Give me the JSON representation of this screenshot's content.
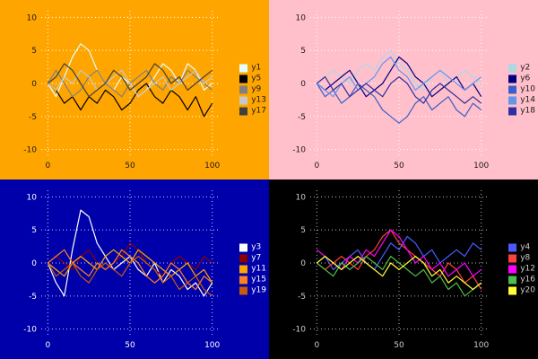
{
  "page": {
    "title": "",
    "layout": "2x2-line-chart-grid"
  },
  "chart_data": [
    {
      "type": "line",
      "panel": "top-left",
      "background": "#FFA500",
      "text_color": "#1a1a1a",
      "grid_color": "#FFFFFF",
      "xlim": [
        -4,
        104
      ],
      "ylim": [
        -11,
        11
      ],
      "xticks": [
        0,
        50,
        100
      ],
      "yticks": [
        -10,
        -5,
        0,
        5,
        10
      ],
      "legend_position": "right",
      "grid": true,
      "x": [
        0,
        5,
        10,
        15,
        20,
        25,
        30,
        35,
        40,
        45,
        50,
        55,
        60,
        65,
        70,
        75,
        80,
        85,
        90,
        95,
        100
      ],
      "series": [
        {
          "name": "y1",
          "color": "#E0FFFF",
          "values": [
            0,
            -2,
            1,
            4,
            6,
            5,
            2,
            0,
            -1,
            1,
            0,
            -2,
            -1,
            1,
            3,
            2,
            0,
            3,
            2,
            -1,
            0
          ]
        },
        {
          "name": "y5",
          "color": "#000000",
          "values": [
            0,
            -1,
            -3,
            -2,
            -4,
            -2,
            -3,
            -1,
            -2,
            -4,
            -3,
            -1,
            0,
            -2,
            -3,
            -1,
            -2,
            -4,
            -2,
            -5,
            -3
          ]
        },
        {
          "name": "y9",
          "color": "#808080",
          "values": [
            0,
            2,
            0,
            -2,
            -1,
            1,
            2,
            0,
            -1,
            -2,
            0,
            1,
            2,
            0,
            -1,
            1,
            0,
            2,
            1,
            0,
            -1
          ]
        },
        {
          "name": "y13",
          "color": "#C8C8C8",
          "values": [
            0,
            -1,
            1,
            0,
            2,
            1,
            -1,
            0,
            1,
            2,
            0,
            -2,
            -1,
            0,
            1,
            -1,
            0,
            1,
            2,
            0,
            1
          ]
        },
        {
          "name": "y17",
          "color": "#404040",
          "values": [
            0,
            1,
            3,
            2,
            0,
            -2,
            -1,
            0,
            2,
            1,
            -1,
            0,
            1,
            3,
            2,
            0,
            1,
            -1,
            0,
            1,
            2
          ]
        }
      ]
    },
    {
      "type": "line",
      "panel": "top-right",
      "background": "#FFC0CB",
      "text_color": "#1a1a1a",
      "grid_color": "#FFFFFF",
      "xlim": [
        -4,
        104
      ],
      "ylim": [
        -11,
        11
      ],
      "xticks": [
        0,
        50,
        100
      ],
      "yticks": [
        -10,
        -5,
        0,
        5,
        10
      ],
      "legend_position": "right",
      "grid": true,
      "x": [
        0,
        5,
        10,
        15,
        20,
        25,
        30,
        35,
        40,
        45,
        50,
        55,
        60,
        65,
        70,
        75,
        80,
        85,
        90,
        95,
        100
      ],
      "series": [
        {
          "name": "y2",
          "color": "#ADD8E6",
          "values": [
            0,
            1,
            2,
            1,
            0,
            2,
            3,
            2,
            4,
            5,
            3,
            2,
            0,
            -1,
            1,
            2,
            0,
            1,
            2,
            1,
            0
          ]
        },
        {
          "name": "y6",
          "color": "#000080",
          "values": [
            0,
            -1,
            0,
            1,
            2,
            0,
            -2,
            -1,
            0,
            2,
            4,
            3,
            1,
            0,
            -2,
            -1,
            0,
            1,
            -1,
            0,
            -2
          ]
        },
        {
          "name": "y10",
          "color": "#3A5FC8",
          "values": [
            0,
            -2,
            -1,
            -3,
            -2,
            0,
            -1,
            -2,
            -4,
            -5,
            -6,
            -5,
            -3,
            -2,
            -4,
            -3,
            -2,
            -4,
            -5,
            -3,
            -4
          ]
        },
        {
          "name": "y14",
          "color": "#6495ED",
          "values": [
            0,
            -1,
            -2,
            0,
            1,
            -1,
            0,
            1,
            3,
            4,
            2,
            1,
            -1,
            0,
            1,
            2,
            1,
            0,
            -1,
            0,
            1
          ]
        },
        {
          "name": "y18",
          "color": "#2F2F9F",
          "values": [
            0,
            1,
            -1,
            0,
            -2,
            -1,
            0,
            -1,
            -2,
            0,
            1,
            0,
            -2,
            -3,
            -1,
            0,
            -1,
            -2,
            -3,
            -2,
            -3
          ]
        }
      ]
    },
    {
      "type": "line",
      "panel": "bottom-left",
      "background": "#0000AA",
      "text_color": "#FFFFFF",
      "grid_color": "#CCCCFF",
      "xlim": [
        -4,
        104
      ],
      "ylim": [
        -11,
        11
      ],
      "xticks": [
        0,
        50,
        100
      ],
      "yticks": [
        -10,
        -5,
        0,
        5,
        10
      ],
      "legend_position": "right",
      "grid": true,
      "x": [
        0,
        5,
        10,
        15,
        20,
        25,
        30,
        35,
        40,
        45,
        50,
        55,
        60,
        65,
        70,
        75,
        80,
        85,
        90,
        95,
        100
      ],
      "series": [
        {
          "name": "y3",
          "color": "#FFFFFF",
          "values": [
            0,
            -3,
            -5,
            2,
            8,
            7,
            3,
            1,
            -1,
            0,
            1,
            -1,
            -2,
            0,
            -3,
            -1,
            -2,
            -4,
            -3,
            -5,
            -3
          ]
        },
        {
          "name": "y7",
          "color": "#8B0000",
          "values": [
            0,
            1,
            0,
            -1,
            1,
            2,
            0,
            -1,
            0,
            1,
            3,
            2,
            0,
            -1,
            -2,
            0,
            1,
            0,
            -1,
            1,
            0
          ]
        },
        {
          "name": "y11",
          "color": "#FFA500",
          "values": [
            0,
            -1,
            -2,
            0,
            1,
            0,
            -1,
            1,
            2,
            1,
            0,
            2,
            1,
            0,
            -1,
            -2,
            -1,
            0,
            -2,
            -1,
            -3
          ]
        },
        {
          "name": "y15",
          "color": "#FF7F24",
          "values": [
            0,
            1,
            2,
            0,
            -1,
            -2,
            0,
            -1,
            0,
            2,
            1,
            0,
            -2,
            -3,
            -2,
            0,
            -1,
            -3,
            -4,
            -2,
            -3
          ]
        },
        {
          "name": "y19",
          "color": "#C9590B",
          "values": [
            0,
            -2,
            -1,
            0,
            -2,
            -3,
            -1,
            0,
            -1,
            -2,
            0,
            1,
            0,
            -1,
            -3,
            -2,
            -4,
            -3,
            -2,
            -4,
            -5
          ]
        }
      ]
    },
    {
      "type": "line",
      "panel": "bottom-right",
      "background": "#000000",
      "text_color": "#CCCCCC",
      "grid_color": "#BBBBBB",
      "xlim": [
        -4,
        104
      ],
      "ylim": [
        -11,
        11
      ],
      "xticks": [
        0,
        50,
        100
      ],
      "yticks": [
        -10,
        -5,
        0,
        5,
        10
      ],
      "legend_position": "right",
      "grid": true,
      "x": [
        0,
        5,
        10,
        15,
        20,
        25,
        30,
        35,
        40,
        45,
        50,
        55,
        60,
        65,
        70,
        75,
        80,
        85,
        90,
        95,
        100
      ],
      "series": [
        {
          "name": "y4",
          "color": "#4B5BFF",
          "values": [
            0,
            1,
            -1,
            0,
            1,
            2,
            0,
            -1,
            1,
            3,
            2,
            4,
            3,
            1,
            2,
            0,
            1,
            2,
            1,
            3,
            2
          ]
        },
        {
          "name": "y8",
          "color": "#FF4040",
          "values": [
            0,
            -1,
            0,
            1,
            0,
            -1,
            1,
            2,
            4,
            5,
            3,
            2,
            1,
            0,
            -1,
            -2,
            0,
            -1,
            -3,
            -2,
            -4
          ]
        },
        {
          "name": "y12",
          "color": "#FF00FF",
          "values": [
            2,
            1,
            0,
            -1,
            1,
            0,
            2,
            1,
            3,
            5,
            4,
            2,
            0,
            1,
            -1,
            0,
            -2,
            -1,
            0,
            -2,
            -1
          ]
        },
        {
          "name": "y16",
          "color": "#4DBD4D",
          "values": [
            0,
            -1,
            -2,
            0,
            -1,
            0,
            1,
            0,
            -1,
            1,
            0,
            -1,
            -2,
            -1,
            -3,
            -2,
            -4,
            -3,
            -5,
            -4,
            -3
          ]
        },
        {
          "name": "y20",
          "color": "#FFFF33",
          "values": [
            0,
            1,
            0,
            -1,
            0,
            1,
            0,
            -1,
            -2,
            0,
            -1,
            0,
            1,
            0,
            -2,
            -1,
            -3,
            -2,
            -3,
            -4,
            -3
          ]
        }
      ]
    }
  ]
}
